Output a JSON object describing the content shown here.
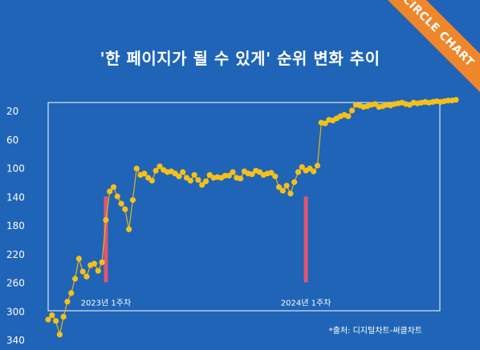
{
  "badge": {
    "label": "CIRCLE CHART"
  },
  "source": "*출처: 디지털차트-써클차트",
  "colors": {
    "background": "#1f64b7",
    "line": "#e7b61a",
    "marker": "#f5c018",
    "frame": "#ffffff",
    "annotation_bar": "#e0566e",
    "badge": "#f0862b"
  },
  "chart_data": {
    "type": "line",
    "title": "'한 페이지가 될 수 있게' 순위 변화 추이",
    "xlabel": "",
    "ylabel": "",
    "y_reversed": true,
    "ylim": [
      20,
      340
    ],
    "ytick_labels": [
      "20",
      "60",
      "100",
      "140",
      "180",
      "220",
      "260",
      "300",
      "340"
    ],
    "yticks": [
      20,
      60,
      100,
      140,
      180,
      220,
      260,
      300,
      340
    ],
    "grid": false,
    "annotations": [
      {
        "index": 15,
        "label": "2023년 1주차",
        "from": 140,
        "to": 260
      },
      {
        "index": 67,
        "label": "2024년 1주차",
        "from": 140,
        "to": 260
      }
    ],
    "series": [
      {
        "name": "",
        "values": [
          312,
          306,
          314,
          333,
          308,
          287,
          275,
          255,
          227,
          245,
          252,
          236,
          234,
          244,
          232,
          173,
          133,
          127,
          140,
          150,
          158,
          186,
          145,
          101,
          110,
          108,
          114,
          118,
          104,
          98,
          103,
          106,
          105,
          108,
          112,
          106,
          114,
          118,
          110,
          117,
          124,
          119,
          110,
          114,
          113,
          114,
          111,
          111,
          106,
          114,
          115,
          105,
          108,
          109,
          104,
          106,
          110,
          108,
          107,
          112,
          127,
          132,
          125,
          136,
          120,
          106,
          99,
          104,
          101,
          105,
          97,
          37,
          38,
          33,
          34,
          31,
          28,
          26,
          28,
          20,
          12,
          13,
          15,
          14,
          12,
          11,
          15,
          14,
          12,
          13,
          11,
          10,
          9,
          11,
          12,
          9,
          10,
          9,
          8,
          9,
          8,
          7,
          8,
          7,
          6,
          6,
          5
        ]
      }
    ]
  }
}
